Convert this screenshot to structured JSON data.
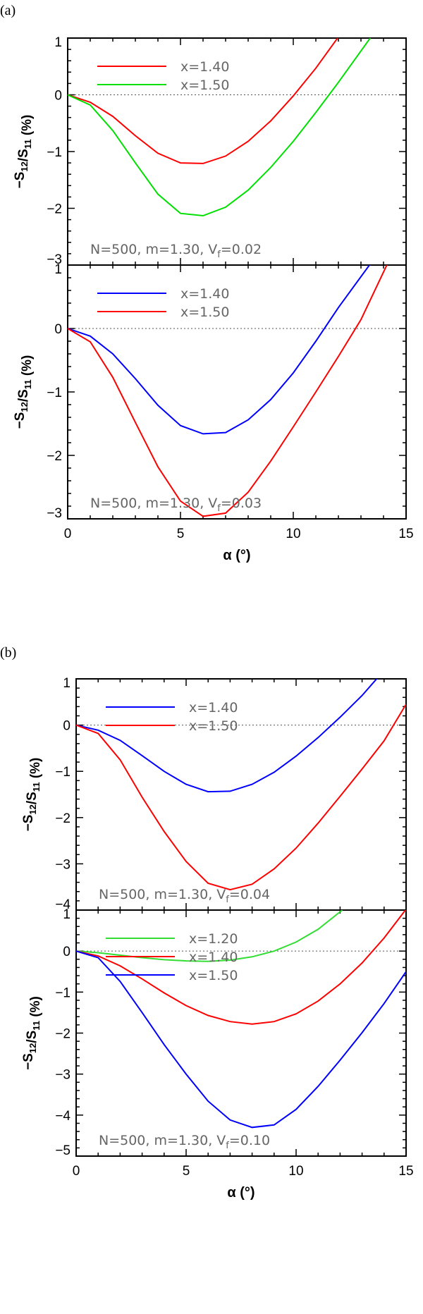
{
  "figure": {
    "group_labels": [
      "(a)",
      "(b)"
    ]
  },
  "chart_data": [
    {
      "id": "a-top",
      "type": "line",
      "group": "(a)",
      "xlabel": "",
      "ylabel": "-S12/S11 (%)",
      "xlim": [
        0,
        15
      ],
      "ylim": [
        -3,
        1
      ],
      "xticks": [
        0,
        5,
        10,
        15
      ],
      "yticks": [
        1,
        0,
        -1,
        -2,
        -3
      ],
      "show_xticklabels": false,
      "annotation": "N=500, m=1.30, Vf=0.02",
      "legend_position": "top-left",
      "series": [
        {
          "name": "x=1.40",
          "color": "#ff0000",
          "x": [
            0,
            1,
            2,
            3,
            4,
            5,
            6,
            7,
            8,
            9,
            10,
            11,
            12
          ],
          "y": [
            0,
            -0.13,
            -0.38,
            -0.72,
            -1.03,
            -1.2,
            -1.21,
            -1.08,
            -0.82,
            -0.46,
            -0.02,
            0.47,
            1.02
          ]
        },
        {
          "name": "x=1.50",
          "color": "#00e000",
          "x": [
            0,
            1,
            2,
            3,
            4,
            5,
            6,
            7,
            8,
            9,
            10,
            11,
            12,
            13.5
          ],
          "y": [
            0,
            -0.18,
            -0.63,
            -1.2,
            -1.75,
            -2.09,
            -2.13,
            -1.98,
            -1.68,
            -1.28,
            -0.82,
            -0.31,
            0.22,
            1.05
          ]
        }
      ]
    },
    {
      "id": "a-bottom",
      "type": "line",
      "group": "(a)",
      "xlabel": "α (°)",
      "ylabel": "-S12/S11 (%)",
      "xlim": [
        0,
        15
      ],
      "ylim": [
        -3,
        1
      ],
      "xticks": [
        0,
        5,
        10,
        15
      ],
      "yticks": [
        1,
        0,
        -1,
        -2,
        -3
      ],
      "show_xticklabels": true,
      "annotation": "N=500, m=1.30, Vf=0.03",
      "legend_position": "top-left",
      "series": [
        {
          "name": "x=1.40",
          "color": "#0000ff",
          "x": [
            0,
            1,
            2,
            3,
            4,
            5,
            6,
            7,
            8,
            9,
            10,
            11,
            12,
            13.5
          ],
          "y": [
            0,
            -0.12,
            -0.4,
            -0.79,
            -1.21,
            -1.53,
            -1.66,
            -1.64,
            -1.44,
            -1.12,
            -0.7,
            -0.2,
            0.33,
            1.06
          ]
        },
        {
          "name": "x=1.50",
          "color": "#ff0000",
          "x": [
            0,
            1,
            2,
            3,
            4,
            5,
            6,
            7,
            8,
            9,
            10,
            11,
            12,
            13,
            14.2
          ],
          "y": [
            0,
            -0.21,
            -0.77,
            -1.48,
            -2.18,
            -2.72,
            -2.96,
            -2.91,
            -2.58,
            -2.09,
            -1.55,
            -1.0,
            -0.44,
            0.14,
            1.04
          ]
        }
      ]
    },
    {
      "id": "b-top",
      "type": "line",
      "group": "(b)",
      "xlabel": "",
      "ylabel": "-S12/S11 (%)",
      "xlim": [
        0,
        15
      ],
      "ylim": [
        -4,
        1
      ],
      "xticks": [
        0,
        5,
        10,
        15
      ],
      "yticks": [
        1,
        0,
        -1,
        -2,
        -3,
        -4
      ],
      "show_xticklabels": false,
      "annotation": "N=500, m=1.30, Vf=0.04",
      "legend_position": "top-left",
      "series": [
        {
          "name": "x=1.40",
          "color": "#0000ff",
          "x": [
            0,
            1,
            2,
            3,
            4,
            5,
            6,
            7,
            8,
            9,
            10,
            11,
            12,
            13,
            13.7
          ],
          "y": [
            0,
            -0.11,
            -0.33,
            -0.66,
            -1.0,
            -1.28,
            -1.44,
            -1.43,
            -1.28,
            -1.02,
            -0.67,
            -0.27,
            0.17,
            0.64,
            1.02
          ]
        },
        {
          "name": "x=1.50",
          "color": "#ff0000",
          "x": [
            0,
            1,
            2,
            3,
            4,
            5,
            6,
            7,
            8,
            9,
            10,
            11,
            12,
            13,
            14,
            15
          ],
          "y": [
            0,
            -0.18,
            -0.75,
            -1.56,
            -2.3,
            -2.95,
            -3.42,
            -3.56,
            -3.44,
            -3.11,
            -2.66,
            -2.12,
            -1.54,
            -0.95,
            -0.34,
            0.45
          ]
        }
      ]
    },
    {
      "id": "b-bottom",
      "type": "line",
      "group": "(b)",
      "xlabel": "α (°)",
      "ylabel": "-S12/S11 (%)",
      "xlim": [
        0,
        15
      ],
      "ylim": [
        -5,
        1
      ],
      "xticks": [
        0,
        5,
        10,
        15
      ],
      "yticks": [
        1,
        0,
        -1,
        -2,
        -3,
        -4,
        -5
      ],
      "show_xticklabels": true,
      "annotation": "N=500, m=1.30, Vf=0.10",
      "legend_position": "top-left",
      "series": [
        {
          "name": "x=1.20",
          "color": "#33dd33",
          "x": [
            0,
            1,
            2,
            3,
            4,
            5,
            6,
            7,
            8,
            9,
            10,
            11,
            12.1
          ],
          "y": [
            0,
            -0.04,
            -0.1,
            -0.16,
            -0.21,
            -0.24,
            -0.25,
            -0.22,
            -0.14,
            0.0,
            0.22,
            0.53,
            1.0
          ]
        },
        {
          "name": "x=1.40",
          "color": "#ff0000",
          "x": [
            0,
            1,
            2,
            3,
            4,
            5,
            6,
            7,
            8,
            9,
            10,
            11,
            12,
            13,
            14,
            15
          ],
          "y": [
            0,
            -0.12,
            -0.36,
            -0.68,
            -1.02,
            -1.33,
            -1.57,
            -1.72,
            -1.78,
            -1.72,
            -1.53,
            -1.22,
            -0.8,
            -0.29,
            0.32,
            1.02
          ]
        },
        {
          "name": "x=1.50",
          "color": "#0000ff",
          "x": [
            0,
            1,
            2,
            3,
            4,
            5,
            6,
            7,
            8,
            9,
            10,
            11,
            12,
            13,
            14,
            15
          ],
          "y": [
            0,
            -0.16,
            -0.74,
            -1.5,
            -2.28,
            -3.0,
            -3.66,
            -4.12,
            -4.3,
            -4.24,
            -3.86,
            -3.3,
            -2.66,
            -1.99,
            -1.28,
            -0.5
          ]
        }
      ]
    }
  ]
}
